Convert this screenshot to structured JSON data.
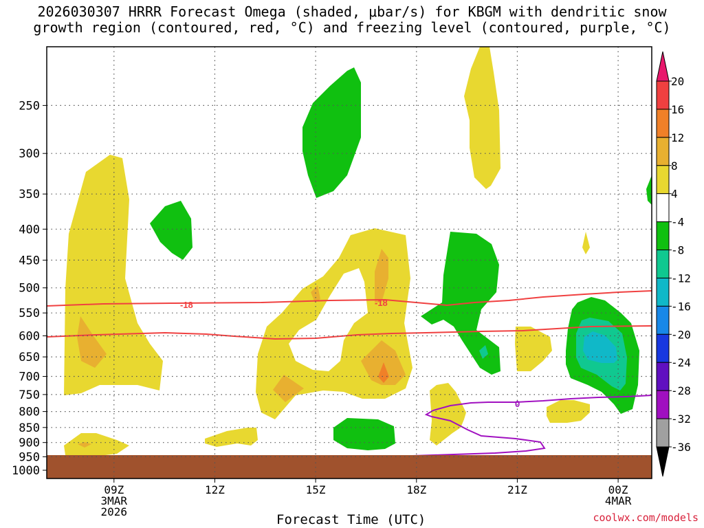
{
  "title": {
    "line1": "2026030307 HRRR Forecast Omega (shaded, μbar/s) for KBGM with dendritic snow",
    "line2": "growth region (contoured, red, °C) and freezing level (contoured, purple, °C)"
  },
  "credit": "coolwx.com/models",
  "chart_data": {
    "type": "time-height cross-section",
    "xlabel": "Forecast Time (UTC)",
    "x_ticks": [
      {
        "hour": 9,
        "label": "09Z",
        "date": "3MAR",
        "year": "2026"
      },
      {
        "hour": 12,
        "label": "12Z",
        "date": "",
        "year": ""
      },
      {
        "hour": 15,
        "label": "15Z",
        "date": "",
        "year": ""
      },
      {
        "hour": 18,
        "label": "18Z",
        "date": "",
        "year": ""
      },
      {
        "hour": 21,
        "label": "21Z",
        "date": "",
        "year": ""
      },
      {
        "hour": 24,
        "label": "00Z",
        "date": "4MAR",
        "year": ""
      }
    ],
    "xlim_hours": [
      7,
      25
    ],
    "ylabel_levels_hPa": [
      250,
      300,
      350,
      400,
      450,
      500,
      550,
      600,
      650,
      700,
      750,
      800,
      850,
      900,
      950,
      1000
    ],
    "ylim_hPa": [
      200,
      1000
    ],
    "colorbar": {
      "label_values": [
        20,
        16,
        12,
        8,
        4,
        -4,
        -8,
        -12,
        -16,
        -20,
        -24,
        -28,
        -32,
        -36
      ],
      "colors": [
        "#e8186c",
        "#f04040",
        "#f08028",
        "#e8b030",
        "#e8d830",
        "#ffffff",
        "#10c010",
        "#10c890",
        "#10b8c8",
        "#1888e8",
        "#1838e0",
        "#6010c0",
        "#a010c0",
        "#a0a0a0",
        "#000000"
      ]
    },
    "contours": [
      {
        "name": "dgz-top",
        "label": "-18",
        "color": "#f04040",
        "approx_level_hPa": 545
      },
      {
        "name": "dgz-bottom",
        "label": "",
        "color": "#f04040",
        "approx_level_hPa": 610
      },
      {
        "name": "freezing-level",
        "label": "0",
        "color": "#a010c0",
        "approx_level_hPa": 790
      }
    ],
    "terrain_color": "#a0522d"
  }
}
